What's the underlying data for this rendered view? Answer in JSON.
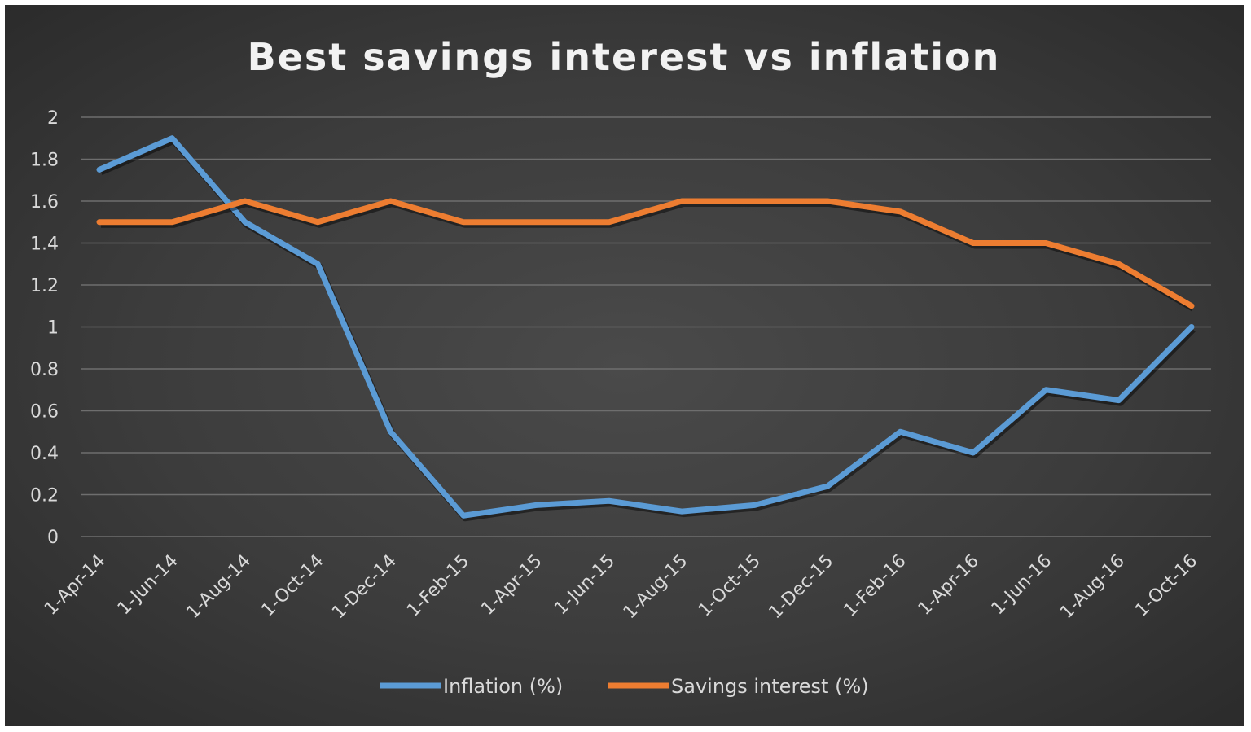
{
  "chart_data": {
    "type": "line",
    "title": "Best savings interest vs inflation",
    "xlabel": "",
    "ylabel": "",
    "ylim": [
      0,
      2
    ],
    "yticks": [
      "0",
      "0.2",
      "0.4",
      "0.6",
      "0.8",
      "1",
      "1.2",
      "1.4",
      "1.6",
      "1.8",
      "2"
    ],
    "categories": [
      "1-Apr-14",
      "1-Jun-14",
      "1-Aug-14",
      "1-Oct-14",
      "1-Dec-14",
      "1-Feb-15",
      "1-Apr-15",
      "1-Jun-15",
      "1-Aug-15",
      "1-Oct-15",
      "1-Dec-15",
      "1-Feb-16",
      "1-Apr-16",
      "1-Jun-16",
      "1-Aug-16",
      "1-Oct-16"
    ],
    "grid": true,
    "legend_position": "bottom",
    "series": [
      {
        "name": "Inflation (%)",
        "color": "#5b9bd5",
        "values": [
          1.75,
          1.9,
          1.5,
          1.3,
          0.5,
          0.1,
          0.15,
          0.17,
          0.12,
          0.15,
          0.24,
          0.5,
          0.4,
          0.7,
          0.65,
          1.0
        ]
      },
      {
        "name": "Savings interest (%)",
        "color": "#ed7d31",
        "values": [
          1.5,
          1.5,
          1.6,
          1.5,
          1.6,
          1.5,
          1.5,
          1.5,
          1.6,
          1.6,
          1.6,
          1.55,
          1.4,
          1.4,
          1.3,
          1.1
        ]
      }
    ]
  }
}
